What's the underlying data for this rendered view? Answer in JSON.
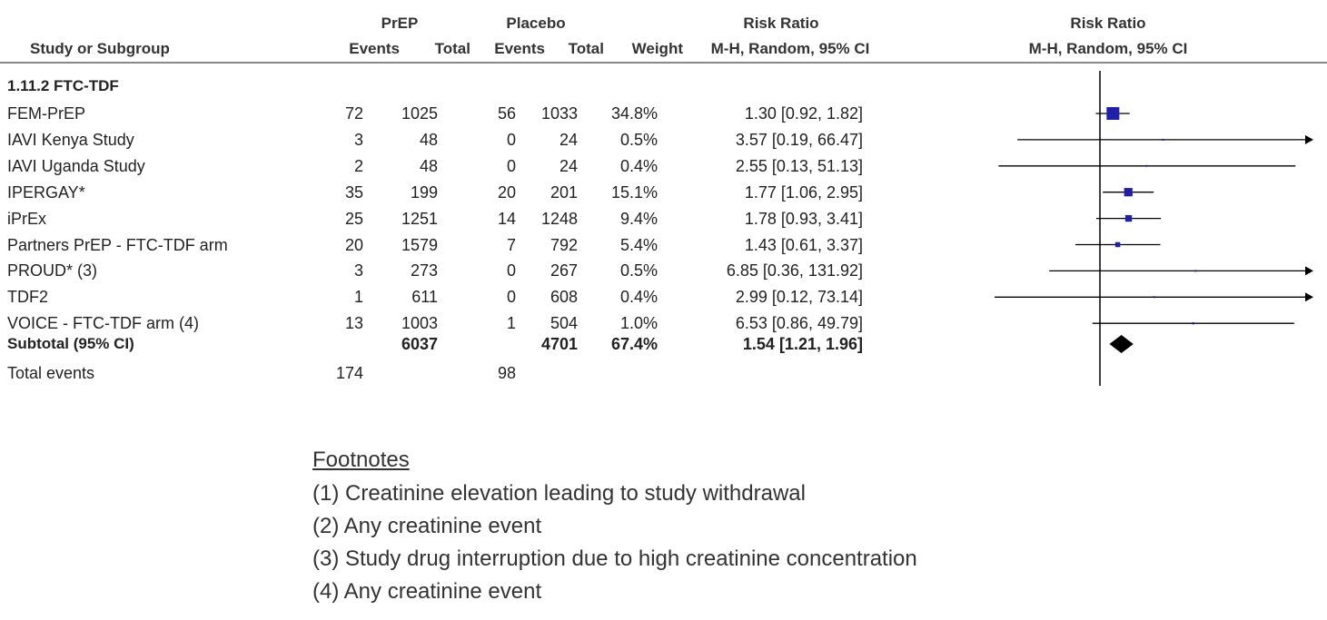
{
  "header": {
    "study_col": "Study or Subgroup",
    "prep_group": "PrEP",
    "placebo_group": "Placebo",
    "events": "Events",
    "total": "Total",
    "weight": "Weight",
    "rr_title": "Risk Ratio",
    "rr_method": "M-H, Random, 95% CI",
    "plot_title": "Risk Ratio",
    "plot_method": "M-H, Random, 95% CI"
  },
  "subgroup_label": "1.11.2 FTC-TDF",
  "rows": [
    {
      "study": "FEM-PrEP",
      "prep_events": "72",
      "prep_total": "1025",
      "pl_events": "56",
      "pl_total": "1033",
      "weight": "34.8%",
      "rr_text": "1.30 [0.92, 1.82]"
    },
    {
      "study": "IAVI Kenya Study",
      "prep_events": "3",
      "prep_total": "48",
      "pl_events": "0",
      "pl_total": "24",
      "weight": "0.5%",
      "rr_text": "3.57 [0.19, 66.47]"
    },
    {
      "study": "IAVI Uganda Study",
      "prep_events": "2",
      "prep_total": "48",
      "pl_events": "0",
      "pl_total": "24",
      "weight": "0.4%",
      "rr_text": "2.55 [0.13, 51.13]"
    },
    {
      "study": "IPERGAY*",
      "prep_events": "35",
      "prep_total": "199",
      "pl_events": "20",
      "pl_total": "201",
      "weight": "15.1%",
      "rr_text": "1.77 [1.06, 2.95]"
    },
    {
      "study": "iPrEx",
      "prep_events": "25",
      "prep_total": "1251",
      "pl_events": "14",
      "pl_total": "1248",
      "weight": "9.4%",
      "rr_text": "1.78 [0.93, 3.41]"
    },
    {
      "study": "Partners PrEP - FTC-TDF arm",
      "prep_events": "20",
      "prep_total": "1579",
      "pl_events": "7",
      "pl_total": "792",
      "weight": "5.4%",
      "rr_text": "1.43 [0.61, 3.37]"
    },
    {
      "study": "PROUD* (3)",
      "prep_events": "3",
      "prep_total": "273",
      "pl_events": "0",
      "pl_total": "267",
      "weight": "0.5%",
      "rr_text": "6.85 [0.36, 131.92]"
    },
    {
      "study": "TDF2",
      "prep_events": "1",
      "prep_total": "611",
      "pl_events": "0",
      "pl_total": "608",
      "weight": "0.4%",
      "rr_text": "2.99 [0.12, 73.14]"
    },
    {
      "study": "VOICE - FTC-TDF arm (4)",
      "prep_events": "13",
      "prep_total": "1003",
      "pl_events": "1",
      "pl_total": "504",
      "weight": "1.0%",
      "rr_text": "6.53 [0.86, 49.79]"
    }
  ],
  "subtotal": {
    "label": "Subtotal (95% CI)",
    "prep_total": "6037",
    "pl_total": "4701",
    "weight": "67.4%",
    "rr_text": "1.54 [1.21, 1.96]"
  },
  "total_events": {
    "label": "Total events",
    "prep": "174",
    "placebo": "98"
  },
  "footnotes": {
    "title": "Footnotes",
    "items": [
      "(1) Creatinine elevation leading to study withdrawal",
      "(2) Any creatinine event",
      "(3) Study drug interruption due to high creatinine concentration",
      "(4) Any creatinine event"
    ]
  },
  "colors": {
    "study_marker": "#1f1fa8",
    "diamond": "#000000",
    "line": "#000000"
  },
  "chart_data": {
    "type": "forest",
    "scale": "log",
    "reference_value": 1,
    "series": [
      {
        "name": "FEM-PrEP",
        "rr": 1.3,
        "lo": 0.92,
        "hi": 1.82,
        "weight": 34.8
      },
      {
        "name": "IAVI Kenya Study",
        "rr": 3.57,
        "lo": 0.19,
        "hi": 66.47,
        "weight": 0.5
      },
      {
        "name": "IAVI Uganda Study",
        "rr": 2.55,
        "lo": 0.13,
        "hi": 51.13,
        "weight": 0.4
      },
      {
        "name": "IPERGAY*",
        "rr": 1.77,
        "lo": 1.06,
        "hi": 2.95,
        "weight": 15.1
      },
      {
        "name": "iPrEx",
        "rr": 1.78,
        "lo": 0.93,
        "hi": 3.41,
        "weight": 9.4
      },
      {
        "name": "Partners PrEP - FTC-TDF arm",
        "rr": 1.43,
        "lo": 0.61,
        "hi": 3.37,
        "weight": 5.4
      },
      {
        "name": "PROUD* (3)",
        "rr": 6.85,
        "lo": 0.36,
        "hi": 131.92,
        "weight": 0.5
      },
      {
        "name": "TDF2",
        "rr": 2.99,
        "lo": 0.12,
        "hi": 73.14,
        "weight": 0.4
      },
      {
        "name": "VOICE - FTC-TDF arm (4)",
        "rr": 6.53,
        "lo": 0.86,
        "hi": 49.79,
        "weight": 1.0
      }
    ],
    "pooled": {
      "name": "Subtotal (95% CI)",
      "rr": 1.54,
      "lo": 1.21,
      "hi": 1.96
    }
  }
}
